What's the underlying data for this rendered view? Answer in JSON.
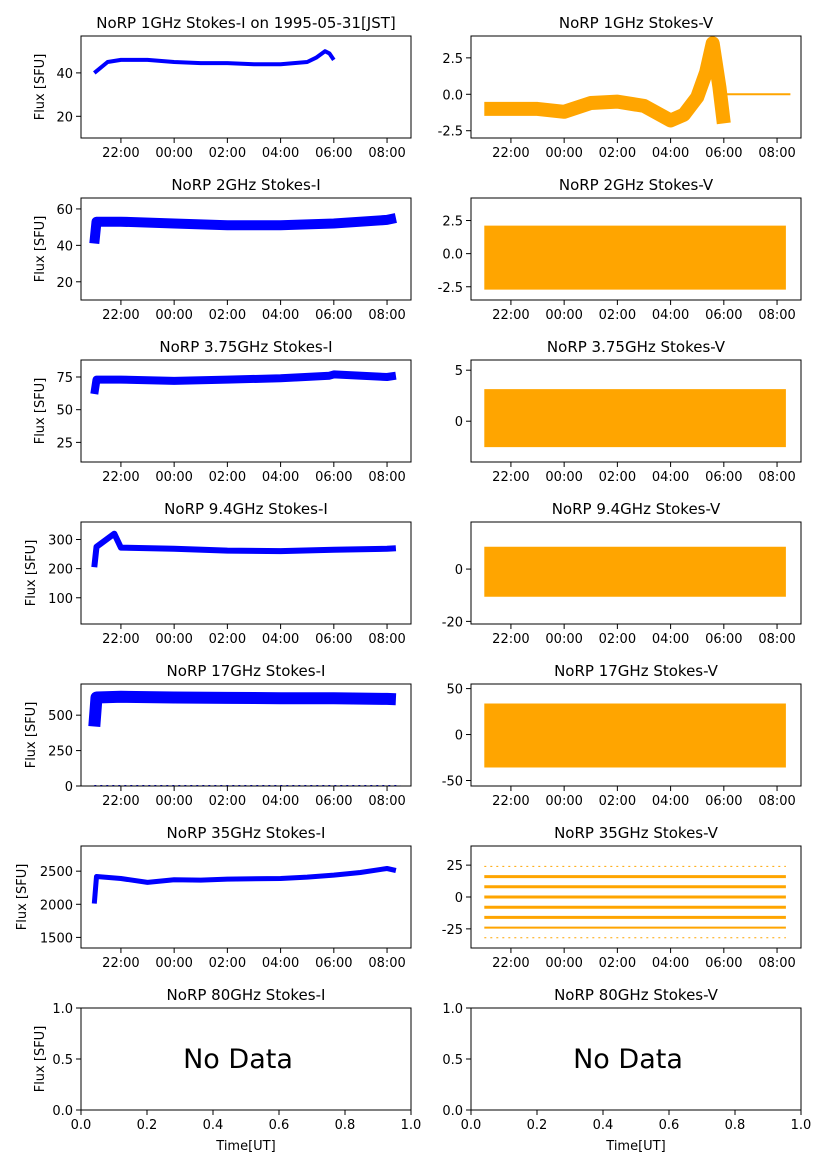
{
  "figure": {
    "xlabel": "Time[UT]",
    "ylabel": "Flux [SFU]",
    "no_data_text": "No Data"
  },
  "colors": {
    "stokes_i": "#0000ff",
    "stokes_v": "#ffa500",
    "axes": "#000000"
  },
  "time_ticks": [
    "22:00",
    "00:00",
    "02:00",
    "04:00",
    "06:00",
    "08:00"
  ],
  "unit_ticks": [
    "0.0",
    "0.2",
    "0.4",
    "0.6",
    "0.8",
    "1.0"
  ],
  "unit_y_ticks": [
    "0.0",
    "0.5",
    "1.0"
  ],
  "chart_data": [
    {
      "type": "scatter",
      "panel": "1GHz-I",
      "title": "NoRP 1GHz Stokes-I on 1995-05-31[JST]",
      "ylabel": "Flux [SFU]",
      "ylim": [
        10,
        57
      ],
      "yticks": [
        20,
        40
      ],
      "series": [
        {
          "color": "#0000ff",
          "x": [
            "21:00",
            "21:30",
            "22:00",
            "23:00",
            "00:00",
            "01:00",
            "02:00",
            "03:00",
            "04:00",
            "04:30",
            "05:00",
            "05:20",
            "05:40",
            "05:50",
            "06:00"
          ],
          "y": [
            40,
            45,
            46,
            46,
            45,
            44.5,
            44.5,
            44,
            44,
            44.5,
            45,
            47,
            50,
            49,
            46
          ],
          "width": 4
        }
      ]
    },
    {
      "type": "scatter",
      "panel": "1GHz-V",
      "title": "NoRP 1GHz Stokes-V",
      "ylim": [
        -3,
        4
      ],
      "yticks": [
        "2.5",
        "0.0",
        "-2.5"
      ],
      "series": [
        {
          "color": "#ffa500",
          "x": [
            "21:00",
            "22:00",
            "23:00",
            "00:00",
            "01:00",
            "02:00",
            "03:00",
            "04:00",
            "04:30",
            "05:00",
            "05:20",
            "05:35",
            "05:50",
            "06:00"
          ],
          "y": [
            -1,
            -1,
            -1,
            -1.2,
            -0.6,
            -0.5,
            -0.8,
            -1.8,
            -1.4,
            -0.2,
            1.5,
            3.5,
            0.5,
            -2
          ],
          "width": 14
        },
        {
          "color": "#ffa500",
          "x": [
            "06:00",
            "08:30"
          ],
          "y": [
            0,
            0
          ],
          "width": 2
        }
      ]
    },
    {
      "type": "scatter",
      "panel": "2GHz-I",
      "title": "NoRP 2GHz Stokes-I",
      "ylabel": "Flux [SFU]",
      "ylim": [
        10,
        66
      ],
      "yticks": [
        20,
        40,
        60
      ],
      "series": [
        {
          "color": "#0000ff",
          "x": [
            "21:00",
            "21:05",
            "22:00",
            "00:00",
            "02:00",
            "04:00",
            "06:00",
            "08:00",
            "08:20"
          ],
          "y": [
            41,
            53,
            53,
            52,
            51,
            51,
            52,
            54,
            55
          ],
          "width": 10
        }
      ]
    },
    {
      "type": "scatter",
      "panel": "2GHz-V",
      "title": "NoRP 2GHz Stokes-V",
      "ylim": [
        -3.5,
        4.2
      ],
      "yticks": [
        "2.5",
        "0.0",
        "-2.5"
      ],
      "series": [
        {
          "color": "#ffa500",
          "x": [
            "21:00",
            "08:20"
          ],
          "y": [
            -0.3,
            -0.3
          ],
          "width": 64
        }
      ]
    },
    {
      "type": "scatter",
      "panel": "3.75GHz-I",
      "title": "NoRP 3.75GHz Stokes-I",
      "ylabel": "Flux [SFU]",
      "ylim": [
        10,
        88
      ],
      "yticks": [
        25,
        50,
        75
      ],
      "series": [
        {
          "color": "#0000ff",
          "x": [
            "21:00",
            "21:05",
            "22:00",
            "00:00",
            "02:00",
            "04:00",
            "05:50",
            "06:00",
            "08:00",
            "08:20"
          ],
          "y": [
            62,
            73,
            73,
            72,
            73,
            74,
            76,
            77,
            75,
            76
          ],
          "width": 8
        }
      ]
    },
    {
      "type": "scatter",
      "panel": "3.75GHz-V",
      "title": "NoRP 3.75GHz Stokes-V",
      "ylim": [
        -4,
        6
      ],
      "yticks": [
        5,
        0
      ],
      "series": [
        {
          "color": "#ffa500",
          "x": [
            "21:00",
            "08:20"
          ],
          "y": [
            0.3,
            0.3
          ],
          "width": 58
        }
      ]
    },
    {
      "type": "scatter",
      "panel": "9.4GHz-I",
      "title": "NoRP 9.4GHz Stokes-I",
      "ylabel": "Flux [SFU]",
      "ylim": [
        10,
        360
      ],
      "yticks": [
        100,
        200,
        300
      ],
      "series": [
        {
          "color": "#0000ff",
          "x": [
            "21:00",
            "21:05",
            "21:45",
            "22:00",
            "00:00",
            "02:00",
            "04:00",
            "06:00",
            "08:00",
            "08:20"
          ],
          "y": [
            205,
            275,
            320,
            272,
            268,
            262,
            260,
            265,
            268,
            270
          ],
          "width": 6
        }
      ]
    },
    {
      "type": "scatter",
      "panel": "9.4GHz-V",
      "title": "NoRP 9.4GHz Stokes-V",
      "ylim": [
        -21,
        18
      ],
      "yticks": [
        0,
        -20
      ],
      "series": [
        {
          "color": "#ffa500",
          "x": [
            "21:00",
            "08:20"
          ],
          "y": [
            -1,
            -1
          ],
          "width": 50
        }
      ]
    },
    {
      "type": "scatter",
      "panel": "17GHz-I",
      "title": "NoRP 17GHz Stokes-I",
      "ylabel": "Flux [SFU]",
      "ylim": [
        0,
        720
      ],
      "yticks": [
        0,
        250,
        500
      ],
      "series": [
        {
          "color": "#0000ff",
          "x": [
            "21:00",
            "21:05",
            "22:00",
            "00:00",
            "02:00",
            "04:00",
            "06:00",
            "08:00",
            "08:20"
          ],
          "y": [
            420,
            625,
            630,
            625,
            622,
            620,
            620,
            615,
            612
          ],
          "width": 12
        },
        {
          "color": "#0000ff",
          "x": [
            "21:00",
            "08:30"
          ],
          "y": [
            0,
            0
          ],
          "width": 2,
          "dashed": true
        }
      ]
    },
    {
      "type": "scatter",
      "panel": "17GHz-V",
      "title": "NoRP 17GHz Stokes-V",
      "ylim": [
        -56,
        55
      ],
      "yticks": [
        50,
        0,
        -50
      ],
      "series": [
        {
          "color": "#ffa500",
          "x": [
            "21:00",
            "08:20"
          ],
          "y": [
            -1,
            -1
          ],
          "width": 64
        }
      ]
    },
    {
      "type": "scatter",
      "panel": "35GHz-I",
      "title": "NoRP 35GHz Stokes-I",
      "ylabel": "Flux [SFU]",
      "ylim": [
        1340,
        2880
      ],
      "yticks": [
        1500,
        2000,
        2500
      ],
      "series": [
        {
          "color": "#0000ff",
          "x": [
            "21:00",
            "21:05",
            "22:00",
            "23:00",
            "00:00",
            "01:00",
            "02:00",
            "04:00",
            "05:00",
            "06:00",
            "07:00",
            "08:00",
            "08:20"
          ],
          "y": [
            2010,
            2420,
            2390,
            2330,
            2370,
            2365,
            2380,
            2390,
            2410,
            2440,
            2480,
            2540,
            2510
          ],
          "width": 5
        }
      ]
    },
    {
      "type": "scatter",
      "panel": "35GHz-V",
      "title": "NoRP 35GHz Stokes-V",
      "ylim": [
        -40,
        40
      ],
      "yticks": [
        25,
        0,
        -25
      ],
      "series": [
        {
          "color": "#ffa500",
          "x": [
            "21:00",
            "08:20"
          ],
          "y": [
            24,
            24
          ],
          "width": 1,
          "dashed": true
        },
        {
          "color": "#ffa500",
          "x": [
            "21:00",
            "08:20"
          ],
          "y": [
            16,
            16
          ],
          "width": 3
        },
        {
          "color": "#ffa500",
          "x": [
            "21:00",
            "08:20"
          ],
          "y": [
            8,
            8
          ],
          "width": 3
        },
        {
          "color": "#ffa500",
          "x": [
            "21:00",
            "08:20"
          ],
          "y": [
            0,
            0
          ],
          "width": 3
        },
        {
          "color": "#ffa500",
          "x": [
            "21:00",
            "08:20"
          ],
          "y": [
            -8,
            -8
          ],
          "width": 3
        },
        {
          "color": "#ffa500",
          "x": [
            "21:00",
            "08:20"
          ],
          "y": [
            -16,
            -16
          ],
          "width": 3
        },
        {
          "color": "#ffa500",
          "x": [
            "21:00",
            "08:20"
          ],
          "y": [
            -24,
            -24
          ],
          "width": 2
        },
        {
          "color": "#ffa500",
          "x": [
            "21:00",
            "08:20"
          ],
          "y": [
            -32,
            -32
          ],
          "width": 1,
          "dashed": true
        }
      ]
    },
    {
      "type": "scatter",
      "panel": "80GHz-I",
      "title": "NoRP 80GHz Stokes-I",
      "ylabel": "Flux [SFU]",
      "xlabel": "Time[UT]",
      "nodata": true,
      "xlim": [
        0,
        1
      ],
      "ylim": [
        0,
        1
      ]
    },
    {
      "type": "scatter",
      "panel": "80GHz-V",
      "title": "NoRP 80GHz Stokes-V",
      "xlabel": "Time[UT]",
      "nodata": true,
      "xlim": [
        0,
        1
      ],
      "ylim": [
        0,
        1
      ]
    }
  ]
}
